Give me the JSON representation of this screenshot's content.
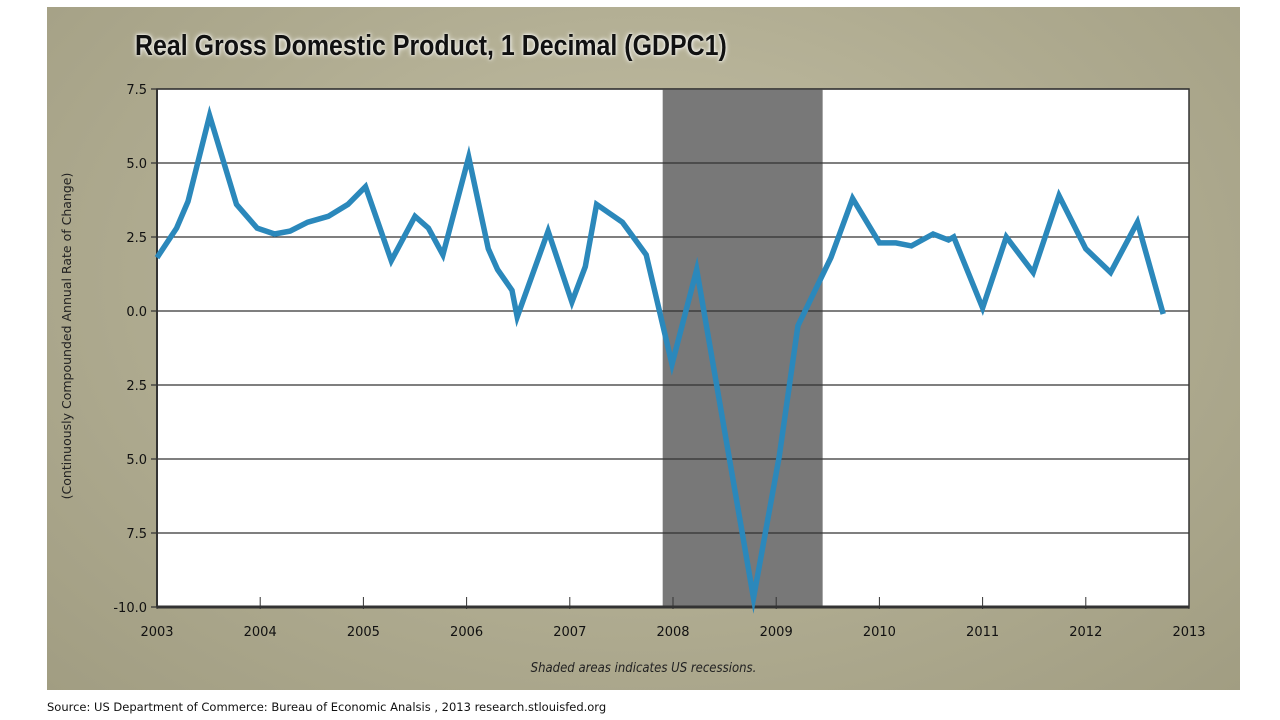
{
  "chart_data": {
    "type": "line",
    "title": "Real Gross Domestic Product, 1 Decimal (GDPC1)",
    "ylabel": "(Continuously Compounded Annual Rate of Change)",
    "xlabel": "",
    "xlim": [
      2003,
      2013
    ],
    "ylim": [
      -10.0,
      7.5
    ],
    "grid": "horizontal",
    "x_ticks": [
      "2003",
      "2004",
      "2005",
      "2006",
      "2007",
      "2008",
      "2009",
      "2010",
      "2011",
      "2012",
      "2013"
    ],
    "y_ticks": [
      {
        "value": 7.5,
        "label": "7.5"
      },
      {
        "value": 5.0,
        "label": "5.0"
      },
      {
        "value": 2.5,
        "label": "2.5"
      },
      {
        "value": 0.0,
        "label": "0.0"
      },
      {
        "value": -2.5,
        "label": "2.5"
      },
      {
        "value": -5.0,
        "label": "5.0"
      },
      {
        "value": -7.5,
        "label": "7.5"
      },
      {
        "value": -10.0,
        "label": "-10.0"
      }
    ],
    "recessions": [
      [
        2007.9,
        2009.45
      ]
    ],
    "colors": {
      "line": "#2b88bb",
      "recession": "#787878",
      "frame": "#aeaa8f"
    },
    "series": [
      {
        "x": [
          2003.0,
          2003.19,
          2003.3,
          2003.51,
          2003.77,
          2003.97,
          2004.14,
          2004.29,
          2004.46,
          2004.66,
          2004.85,
          2005.02,
          2005.27,
          2005.5,
          2005.63,
          2005.77,
          2006.02,
          2006.21,
          2006.3,
          2006.44,
          2006.49,
          2006.79,
          2007.02,
          2007.15,
          2007.26,
          2007.51,
          2007.74,
          2007.99,
          2008.23,
          2008.78,
          2009.03,
          2009.21,
          2009.53,
          2009.74,
          2010.0,
          2010.16,
          2010.31,
          2010.52,
          2010.67,
          2010.72,
          2011.0,
          2011.23,
          2011.49,
          2011.74,
          2012.0,
          2012.24,
          2012.5,
          2012.75
        ],
        "y": [
          1.8,
          2.8,
          3.7,
          6.6,
          3.6,
          2.8,
          2.6,
          2.7,
          3.0,
          3.2,
          3.6,
          4.2,
          1.7,
          3.2,
          2.8,
          1.9,
          5.2,
          2.1,
          1.4,
          0.7,
          -0.2,
          2.7,
          0.3,
          1.5,
          3.6,
          3.0,
          1.9,
          -1.8,
          1.4,
          -9.7,
          -4.9,
          -0.5,
          1.8,
          3.8,
          2.3,
          2.3,
          2.2,
          2.6,
          2.4,
          2.5,
          0.1,
          2.5,
          1.3,
          3.9,
          2.1,
          1.3,
          3.0,
          -0.1
        ]
      }
    ],
    "annotation": "Shaded areas indicates US recessions."
  },
  "source": "Source:  US Department of Commerce: Bureau of Economic Analsis , 2013 research.stlouisfed.org"
}
